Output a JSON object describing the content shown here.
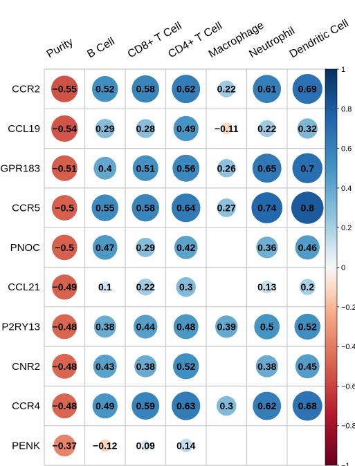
{
  "chart_data": {
    "type": "correlation-matrix",
    "columns": [
      "Purity",
      "B Cell",
      "CD8+ T Cell",
      "CD4+ T Cell",
      "Macrophage",
      "Neutrophil",
      "Dendritic Cell"
    ],
    "rows": [
      "CCR2",
      "CCL19",
      "GPR183",
      "CCR5",
      "PNOC",
      "CCL21",
      "P2RY13",
      "CNR2",
      "CCR4",
      "PENK"
    ],
    "values": [
      [
        -0.55,
        0.52,
        0.58,
        0.62,
        0.22,
        0.61,
        0.69
      ],
      [
        -0.54,
        0.29,
        0.28,
        0.49,
        -0.11,
        0.22,
        0.32
      ],
      [
        -0.51,
        0.4,
        0.51,
        0.56,
        0.26,
        0.65,
        0.7
      ],
      [
        -0.5,
        0.55,
        0.58,
        0.64,
        0.27,
        0.74,
        0.8
      ],
      [
        -0.5,
        0.47,
        0.29,
        0.42,
        null,
        0.36,
        0.46
      ],
      [
        -0.49,
        0.1,
        0.22,
        0.3,
        null,
        0.13,
        0.2
      ],
      [
        -0.48,
        0.38,
        0.44,
        0.48,
        0.39,
        0.5,
        0.52
      ],
      [
        -0.48,
        0.43,
        0.38,
        0.52,
        null,
        0.38,
        0.45
      ],
      [
        -0.48,
        0.49,
        0.59,
        0.63,
        0.3,
        0.62,
        0.68
      ],
      [
        -0.37,
        -0.12,
        0.09,
        0.14,
        null,
        null,
        null
      ]
    ],
    "value_labels": [
      [
        "−0.55",
        "0.52",
        "0.58",
        "0.62",
        "0.22",
        "0.61",
        "0.69"
      ],
      [
        "−0.54",
        "0.29",
        "0.28",
        "0.49",
        "−0.11",
        "0.22",
        "0.32"
      ],
      [
        "−0.51",
        "0.4",
        "0.51",
        "0.56",
        "0.26",
        "0.65",
        "0.7"
      ],
      [
        "−0.5",
        "0.55",
        "0.58",
        "0.64",
        "0.27",
        "0.74",
        "0.8"
      ],
      [
        "−0.5",
        "0.47",
        "0.29",
        "0.42",
        "",
        "0.36",
        "0.46"
      ],
      [
        "−0.49",
        "0.1",
        "0.22",
        "0.3",
        "",
        "0.13",
        "0.2"
      ],
      [
        "−0.48",
        "0.38",
        "0.44",
        "0.48",
        "0.39",
        "0.5",
        "0.52"
      ],
      [
        "−0.48",
        "0.43",
        "0.38",
        "0.52",
        "",
        "0.38",
        "0.45"
      ],
      [
        "−0.48",
        "0.49",
        "0.59",
        "0.63",
        "0.3",
        "0.62",
        "0.68"
      ],
      [
        "−0.37",
        "−0.12",
        "0.09",
        "0.14",
        "",
        "",
        ""
      ]
    ],
    "color_scale": {
      "range": [
        -1,
        1
      ],
      "ticks": [
        1,
        0.8,
        0.6,
        0.4,
        0.2,
        0,
        -0.2,
        -0.4,
        -0.6,
        -0.8,
        -1
      ],
      "tick_labels": [
        "1",
        "0.8",
        "0.6",
        "0.4",
        "0.2",
        "0",
        "−0.2",
        "−0.4",
        "−0.6",
        "−0.8",
        "−1"
      ],
      "legend_position": "right",
      "stops": [
        {
          "v": -1,
          "color": "#67001f"
        },
        {
          "v": -0.75,
          "color": "#b2182b"
        },
        {
          "v": -0.5,
          "color": "#d6604d"
        },
        {
          "v": -0.25,
          "color": "#f4a582"
        },
        {
          "v": -0.1,
          "color": "#fddbc7"
        },
        {
          "v": 0,
          "color": "#f7f7f7"
        },
        {
          "v": 0.1,
          "color": "#d1e5f0"
        },
        {
          "v": 0.25,
          "color": "#92c5de"
        },
        {
          "v": 0.5,
          "color": "#4393c3"
        },
        {
          "v": 0.75,
          "color": "#2166ac"
        },
        {
          "v": 1,
          "color": "#053061"
        }
      ]
    },
    "grid": true,
    "title": "",
    "xlabel": "",
    "ylabel": ""
  }
}
